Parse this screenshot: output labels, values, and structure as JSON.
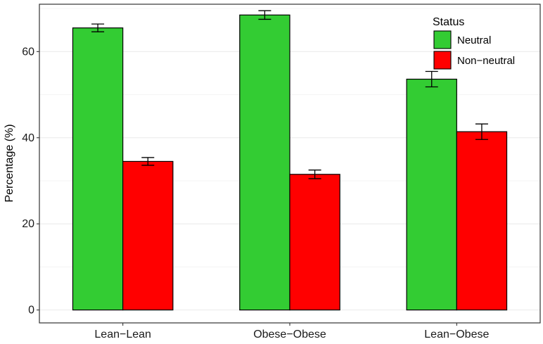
{
  "chart_data": {
    "type": "bar",
    "title": "",
    "xlabel": "",
    "ylabel": "Percentage (%)",
    "ylim": [
      -3,
      71
    ],
    "yticks": [
      0,
      20,
      40,
      60
    ],
    "categories": [
      "Lean−Lean",
      "Obese−Obese",
      "Lean−Obese"
    ],
    "legend": {
      "title": "Status",
      "position": "top-right"
    },
    "grid": true,
    "series": [
      {
        "name": "Neutral",
        "color": "#33cc33",
        "values": [
          65.5,
          68.5,
          53.6
        ],
        "errors": [
          0.9,
          1.0,
          1.8
        ]
      },
      {
        "name": "Non−neutral",
        "color": "#ff0000",
        "values": [
          34.5,
          31.5,
          41.4
        ],
        "errors": [
          0.9,
          1.0,
          1.8
        ]
      }
    ]
  }
}
